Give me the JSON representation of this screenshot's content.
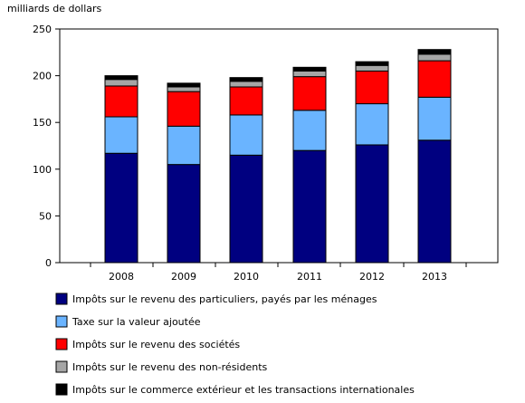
{
  "chart_data": {
    "type": "bar",
    "stacked": true,
    "ylabel": "milliards de dollars",
    "ylim": [
      0,
      250
    ],
    "yticks": [
      0,
      50,
      100,
      150,
      200,
      250
    ],
    "categories": [
      "2008",
      "2009",
      "2010",
      "2011",
      "2012",
      "2013"
    ],
    "grid": false,
    "legend_position": "bottom",
    "series": [
      {
        "name": "Impôts sur le revenu des particuliers, payés par les ménages",
        "color": "#000080",
        "values": [
          117,
          105,
          115,
          120,
          126,
          131
        ]
      },
      {
        "name": "Taxe sur la valeur ajoutée",
        "color": "#6ab4ff",
        "values": [
          39,
          41,
          43,
          43,
          44,
          46
        ]
      },
      {
        "name": "Impôts sur le revenu des sociétés",
        "color": "#ff0000",
        "values": [
          33,
          37,
          30,
          36,
          35,
          39
        ]
      },
      {
        "name": "Impôts sur le revenu des non-résidents",
        "color": "#a6a6a6",
        "values": [
          7,
          5,
          6,
          6,
          6,
          7
        ]
      },
      {
        "name": "Impôts sur le commerce extérieur et les transactions internationales",
        "color": "#000000",
        "values": [
          4,
          4,
          4,
          4,
          4,
          5
        ]
      }
    ]
  }
}
